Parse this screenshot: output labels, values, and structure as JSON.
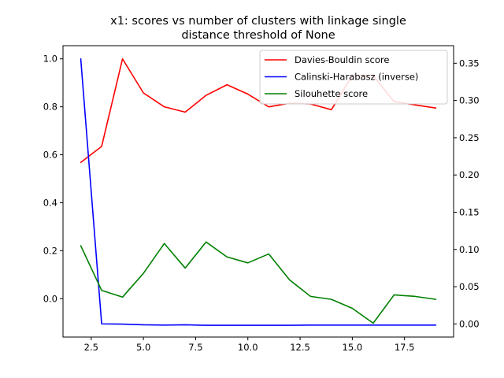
{
  "chart_data": {
    "type": "line",
    "title_lines": [
      "x1: scores vs number of clusters with linkage single",
      "distance threshold of None"
    ],
    "x": [
      2,
      3,
      4,
      5,
      6,
      7,
      8,
      9,
      10,
      11,
      12,
      13,
      14,
      15,
      16,
      17,
      18,
      19
    ],
    "xlim": [
      1.15,
      19.85
    ],
    "xticks": [
      2.5,
      5.0,
      7.5,
      10.0,
      12.5,
      15.0,
      17.5
    ],
    "xtick_labels": [
      "2.5",
      "5.0",
      "7.5",
      "10.0",
      "12.5",
      "15.0",
      "17.5"
    ],
    "left_axis": {
      "ylim": [
        -0.16,
        1.055
      ],
      "ticks": [
        0.0,
        0.2,
        0.4,
        0.6,
        0.8,
        1.0
      ],
      "tick_labels": [
        "0.0",
        "0.2",
        "0.4",
        "0.6",
        "0.8",
        "1.0"
      ]
    },
    "right_axis": {
      "ylim": [
        -0.0176,
        0.3736
      ],
      "ticks": [
        0.0,
        0.05,
        0.1,
        0.15,
        0.2,
        0.25,
        0.3,
        0.35
      ],
      "tick_labels": [
        "0.00",
        "0.05",
        "0.10",
        "0.15",
        "0.20",
        "0.25",
        "0.30",
        "0.35"
      ]
    },
    "series": [
      {
        "name": "Davies-Bouldin score",
        "color": "#ff0000",
        "axis": "left",
        "values": [
          0.568,
          0.635,
          1.0,
          0.858,
          0.8,
          0.778,
          0.848,
          0.892,
          0.853,
          0.8,
          0.815,
          0.812,
          0.788,
          0.93,
          0.93,
          0.822,
          0.808,
          0.795
        ]
      },
      {
        "name": "Calinski-Harabasz (inverse)",
        "color": "#0000ff",
        "axis": "left",
        "values": [
          1.0,
          -0.105,
          -0.106,
          -0.109,
          -0.11,
          -0.109,
          -0.111,
          -0.111,
          -0.111,
          -0.111,
          -0.111,
          -0.11,
          -0.11,
          -0.11,
          -0.11,
          -0.11,
          -0.11,
          -0.11
        ]
      },
      {
        "name": "Silouhette score",
        "color": "#008000",
        "axis": "right",
        "values": [
          0.105,
          0.045,
          0.036,
          0.068,
          0.108,
          0.075,
          0.11,
          0.09,
          0.082,
          0.094,
          0.059,
          0.037,
          0.033,
          0.021,
          0.001,
          0.039,
          0.037,
          0.033
        ]
      }
    ],
    "legend_position": "upper right",
    "grid": false
  }
}
